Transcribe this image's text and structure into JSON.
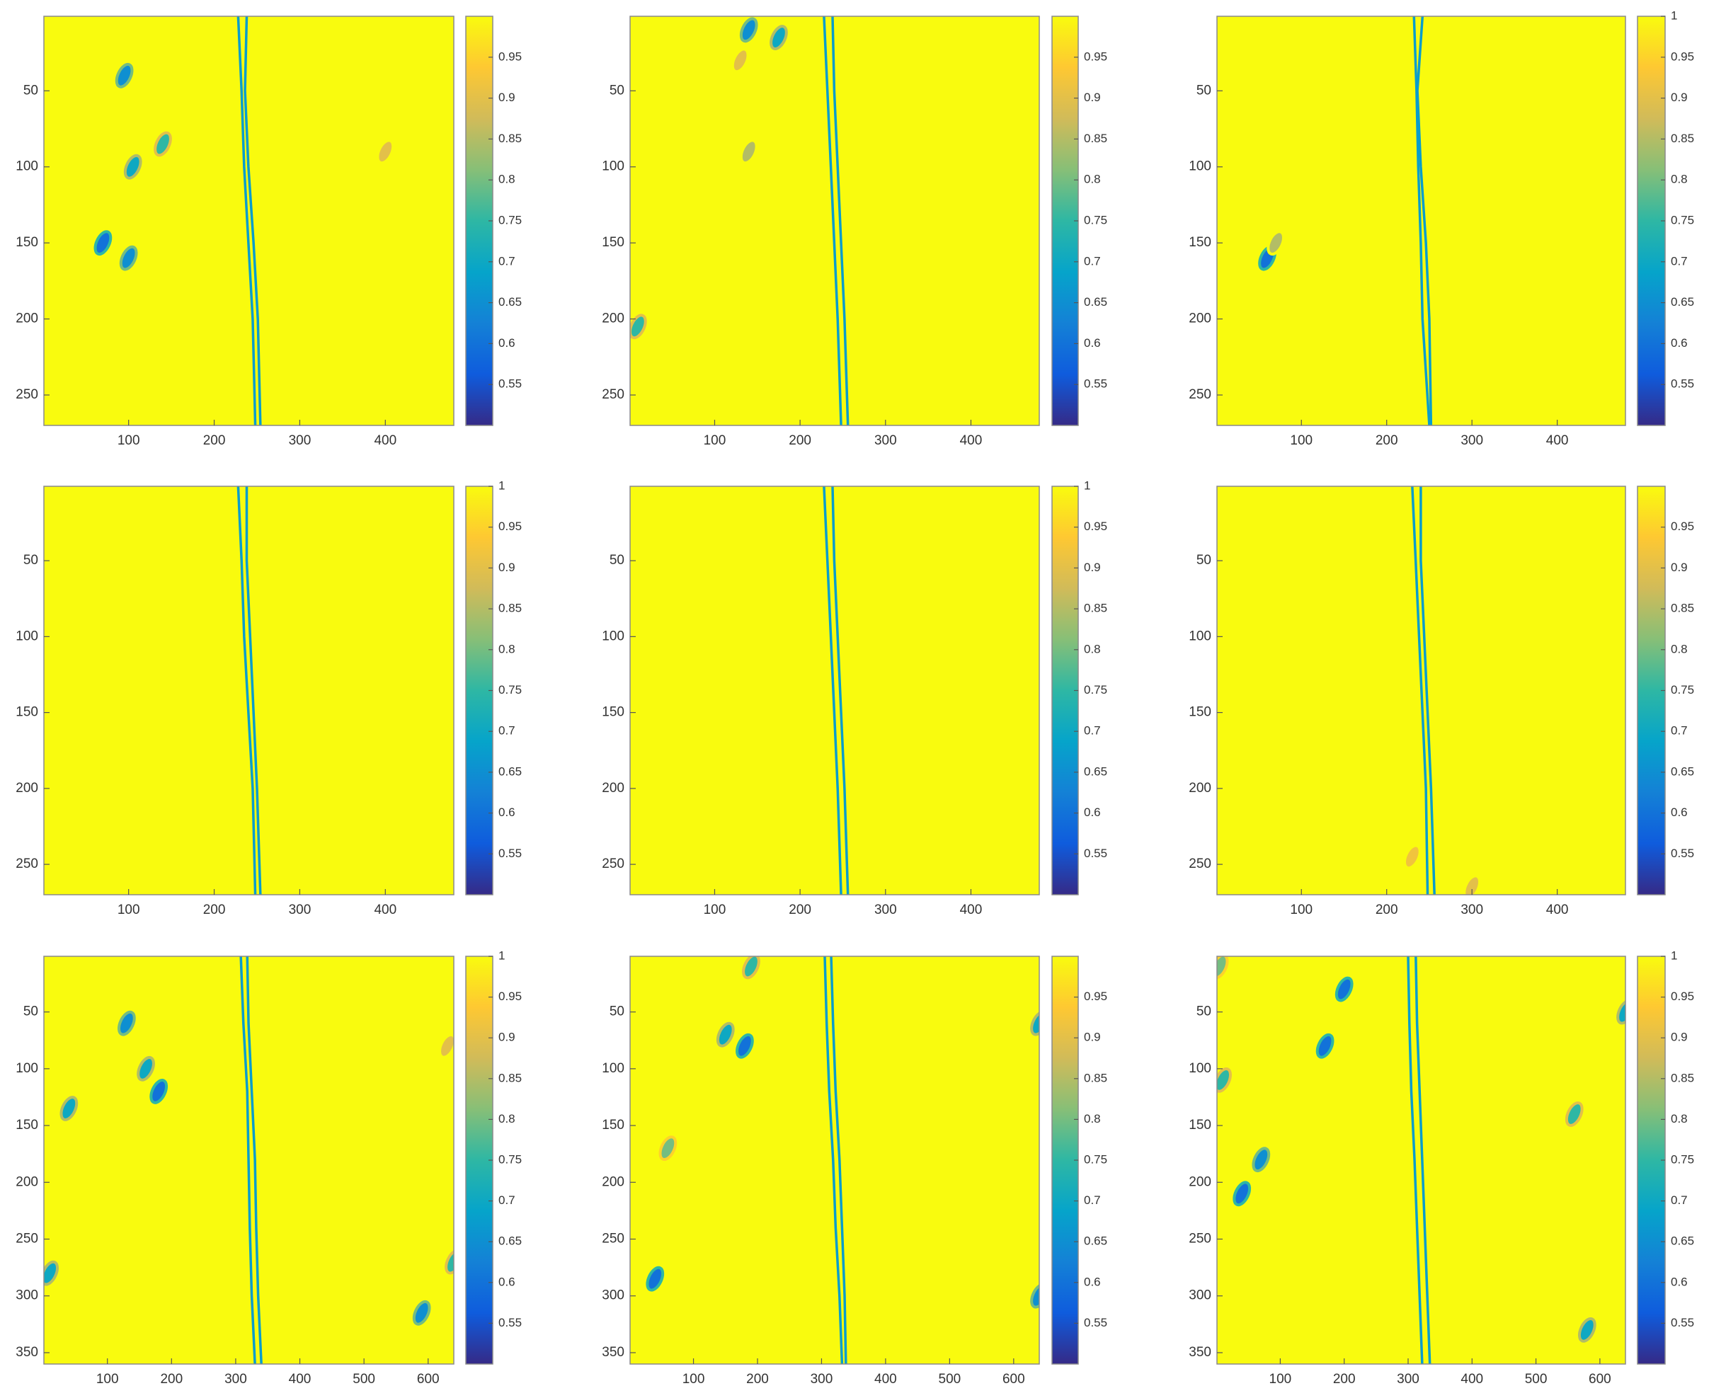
{
  "chart_data": [
    {
      "type": "heatmap",
      "xlim": [
        1,
        480
      ],
      "ylim": [
        1,
        270
      ],
      "y_reversed": true,
      "xticks": [
        100,
        200,
        300,
        400
      ],
      "yticks": [
        50,
        100,
        150,
        200,
        250
      ],
      "clim": [
        0.5,
        1
      ],
      "cticks": [
        0.55,
        0.6,
        0.65,
        0.7,
        0.75,
        0.8,
        0.85,
        0.9,
        0.95
      ],
      "colormap": [
        "#352a87",
        "#0f5cdd",
        "#1481d6",
        "#06a4ca",
        "#2eb7a4",
        "#87bf77",
        "#d1bb59",
        "#fec832",
        "#f9fb0e"
      ],
      "curves": [
        {
          "x": [
            228,
            232,
            235,
            240,
            245,
            248
          ],
          "y": [
            1,
            50,
            100,
            150,
            200,
            270
          ]
        },
        {
          "x": [
            238,
            236,
            240,
            246,
            251,
            254
          ],
          "y": [
            1,
            50,
            100,
            150,
            200,
            270
          ]
        }
      ],
      "spots": {
        "x": [
          95,
          105,
          70,
          100,
          140,
          400
        ],
        "y": [
          40,
          100,
          150,
          160,
          85,
          90
        ],
        "values": [
          0.65,
          0.7,
          0.6,
          0.65,
          0.75,
          0.9
        ]
      }
    },
    {
      "type": "heatmap",
      "xlim": [
        1,
        480
      ],
      "ylim": [
        1,
        270
      ],
      "y_reversed": true,
      "xticks": [
        100,
        200,
        300,
        400
      ],
      "yticks": [
        50,
        100,
        150,
        200,
        250
      ],
      "clim": [
        0.5,
        1
      ],
      "cticks": [
        0.55,
        0.6,
        0.65,
        0.7,
        0.75,
        0.8,
        0.85,
        0.9,
        0.95
      ],
      "colormap": [
        "#352a87",
        "#0f5cdd",
        "#1481d6",
        "#06a4ca",
        "#2eb7a4",
        "#87bf77",
        "#d1bb59",
        "#fec832",
        "#f9fb0e"
      ],
      "curves": [
        {
          "x": [
            228,
            232,
            236,
            240,
            244,
            248
          ],
          "y": [
            1,
            50,
            100,
            150,
            200,
            270
          ]
        },
        {
          "x": [
            238,
            240,
            244,
            248,
            252,
            256
          ],
          "y": [
            1,
            50,
            100,
            150,
            200,
            270
          ]
        }
      ],
      "spots": {
        "x": [
          140,
          175,
          140,
          10,
          130
        ],
        "y": [
          10,
          15,
          90,
          205,
          30
        ],
        "values": [
          0.65,
          0.7,
          0.85,
          0.75,
          0.9
        ]
      }
    },
    {
      "type": "heatmap",
      "xlim": [
        1,
        480
      ],
      "ylim": [
        1,
        270
      ],
      "y_reversed": true,
      "xticks": [
        100,
        200,
        300,
        400
      ],
      "yticks": [
        50,
        100,
        150,
        200,
        250
      ],
      "clim": [
        0.5,
        1
      ],
      "cticks": [
        0.55,
        0.6,
        0.65,
        0.7,
        0.75,
        0.8,
        0.85,
        0.9,
        0.95,
        1
      ],
      "colormap": [
        "#352a87",
        "#0f5cdd",
        "#1481d6",
        "#06a4ca",
        "#2eb7a4",
        "#87bf77",
        "#d1bb59",
        "#fec832",
        "#f9fb0e"
      ],
      "curves": [
        {
          "x": [
            232,
            235,
            237,
            240,
            242,
            250
          ],
          "y": [
            1,
            50,
            100,
            150,
            200,
            270
          ]
        },
        {
          "x": [
            242,
            236,
            240,
            246,
            250,
            252
          ],
          "y": [
            1,
            50,
            100,
            150,
            200,
            270
          ]
        }
      ],
      "spots": {
        "x": [
          60,
          70
        ],
        "y": [
          160,
          150
        ],
        "values": [
          0.6,
          0.85
        ]
      }
    },
    {
      "type": "heatmap",
      "xlim": [
        1,
        480
      ],
      "ylim": [
        1,
        270
      ],
      "y_reversed": true,
      "xticks": [
        100,
        200,
        300,
        400
      ],
      "yticks": [
        50,
        100,
        150,
        200,
        250
      ],
      "clim": [
        0.5,
        1
      ],
      "cticks": [
        0.55,
        0.6,
        0.65,
        0.7,
        0.75,
        0.8,
        0.85,
        0.9,
        0.95,
        1
      ],
      "colormap": [
        "#352a87",
        "#0f5cdd",
        "#1481d6",
        "#06a4ca",
        "#2eb7a4",
        "#87bf77",
        "#d1bb59",
        "#fec832",
        "#f9fb0e"
      ],
      "curves": [
        {
          "x": [
            228,
            232,
            235,
            240,
            245,
            248
          ],
          "y": [
            1,
            50,
            100,
            150,
            200,
            270
          ]
        },
        {
          "x": [
            238,
            238,
            242,
            246,
            250,
            254
          ],
          "y": [
            1,
            50,
            100,
            150,
            200,
            270
          ]
        }
      ]
    },
    {
      "type": "heatmap",
      "xlim": [
        1,
        480
      ],
      "ylim": [
        1,
        270
      ],
      "y_reversed": true,
      "xticks": [
        100,
        200,
        300,
        400
      ],
      "yticks": [
        50,
        100,
        150,
        200,
        250
      ],
      "clim": [
        0.5,
        1
      ],
      "cticks": [
        0.55,
        0.6,
        0.65,
        0.7,
        0.75,
        0.8,
        0.85,
        0.9,
        0.95,
        1
      ],
      "colormap": [
        "#352a87",
        "#0f5cdd",
        "#1481d6",
        "#06a4ca",
        "#2eb7a4",
        "#87bf77",
        "#d1bb59",
        "#fec832",
        "#f9fb0e"
      ],
      "curves": [
        {
          "x": [
            228,
            232,
            236,
            240,
            244,
            248
          ],
          "y": [
            1,
            50,
            100,
            150,
            200,
            270
          ]
        },
        {
          "x": [
            238,
            240,
            244,
            248,
            252,
            256
          ],
          "y": [
            1,
            50,
            100,
            150,
            200,
            270
          ]
        }
      ]
    },
    {
      "type": "heatmap",
      "xlim": [
        1,
        480
      ],
      "ylim": [
        1,
        270
      ],
      "y_reversed": true,
      "xticks": [
        100,
        200,
        300,
        400
      ],
      "yticks": [
        50,
        100,
        150,
        200,
        250
      ],
      "clim": [
        0.5,
        1
      ],
      "cticks": [
        0.55,
        0.6,
        0.65,
        0.7,
        0.75,
        0.8,
        0.85,
        0.9,
        0.95
      ],
      "colormap": [
        "#352a87",
        "#0f5cdd",
        "#1481d6",
        "#06a4ca",
        "#2eb7a4",
        "#87bf77",
        "#d1bb59",
        "#fec832",
        "#f9fb0e"
      ],
      "curves": [
        {
          "x": [
            230,
            234,
            238,
            242,
            246,
            248
          ],
          "y": [
            1,
            50,
            100,
            150,
            200,
            270
          ]
        },
        {
          "x": [
            240,
            240,
            244,
            248,
            252,
            256
          ],
          "y": [
            1,
            50,
            100,
            150,
            200,
            270
          ]
        }
      ],
      "spots": {
        "x": [
          300,
          230
        ],
        "y": [
          265,
          245
        ],
        "values": [
          0.9,
          0.92
        ]
      }
    },
    {
      "type": "heatmap",
      "xlim": [
        1,
        640
      ],
      "ylim": [
        1,
        360
      ],
      "y_reversed": true,
      "xticks": [
        100,
        200,
        300,
        400,
        500,
        600
      ],
      "yticks": [
        50,
        100,
        150,
        200,
        250,
        300,
        350
      ],
      "clim": [
        0.5,
        1
      ],
      "cticks": [
        0.55,
        0.6,
        0.65,
        0.7,
        0.75,
        0.8,
        0.85,
        0.9,
        0.95,
        1
      ],
      "colormap": [
        "#352a87",
        "#0f5cdd",
        "#1481d6",
        "#06a4ca",
        "#2eb7a4",
        "#87bf77",
        "#d1bb59",
        "#fec832",
        "#f9fb0e"
      ],
      "curves": [
        {
          "x": [
            308,
            312,
            318,
            320,
            322,
            325,
            330
          ],
          "y": [
            1,
            60,
            120,
            180,
            240,
            300,
            360
          ]
        },
        {
          "x": [
            318,
            320,
            325,
            330,
            332,
            335,
            340
          ],
          "y": [
            1,
            60,
            120,
            180,
            240,
            300,
            360
          ]
        }
      ],
      "spots": {
        "x": [
          130,
          160,
          180,
          40,
          10,
          590,
          640,
          630
        ],
        "y": [
          60,
          100,
          120,
          135,
          280,
          315,
          270,
          80
        ],
        "values": [
          0.65,
          0.7,
          0.6,
          0.7,
          0.7,
          0.65,
          0.75,
          0.9
        ]
      }
    },
    {
      "type": "heatmap",
      "xlim": [
        1,
        640
      ],
      "ylim": [
        1,
        360
      ],
      "y_reversed": true,
      "xticks": [
        100,
        200,
        300,
        400,
        500,
        600
      ],
      "yticks": [
        50,
        100,
        150,
        200,
        250,
        300,
        350
      ],
      "clim": [
        0.5,
        1
      ],
      "cticks": [
        0.55,
        0.6,
        0.65,
        0.7,
        0.75,
        0.8,
        0.85,
        0.9,
        0.95
      ],
      "colormap": [
        "#352a87",
        "#0f5cdd",
        "#1481d6",
        "#06a4ca",
        "#2eb7a4",
        "#87bf77",
        "#d1bb59",
        "#fec832",
        "#f9fb0e"
      ],
      "curves": [
        {
          "x": [
            305,
            308,
            312,
            318,
            322,
            328,
            332
          ],
          "y": [
            1,
            60,
            120,
            180,
            240,
            300,
            360
          ]
        },
        {
          "x": [
            315,
            318,
            322,
            328,
            332,
            336,
            338
          ],
          "y": [
            1,
            60,
            120,
            180,
            240,
            300,
            360
          ]
        }
      ],
      "spots": {
        "x": [
          180,
          150,
          40,
          640,
          640,
          190,
          60
        ],
        "y": [
          80,
          70,
          285,
          300,
          60,
          10,
          170
        ],
        "values": [
          0.6,
          0.7,
          0.6,
          0.65,
          0.7,
          0.75,
          0.8
        ]
      }
    },
    {
      "type": "heatmap",
      "xlim": [
        1,
        640
      ],
      "ylim": [
        1,
        360
      ],
      "y_reversed": true,
      "xticks": [
        100,
        200,
        300,
        400,
        500,
        600
      ],
      "yticks": [
        50,
        100,
        150,
        200,
        250,
        300,
        350
      ],
      "clim": [
        0.5,
        1
      ],
      "cticks": [
        0.55,
        0.6,
        0.65,
        0.7,
        0.75,
        0.8,
        0.85,
        0.9,
        0.95,
        1
      ],
      "colormap": [
        "#352a87",
        "#0f5cdd",
        "#1481d6",
        "#06a4ca",
        "#2eb7a4",
        "#87bf77",
        "#d1bb59",
        "#fec832",
        "#f9fb0e"
      ],
      "curves": [
        {
          "x": [
            300,
            302,
            305,
            310,
            314,
            318,
            322
          ],
          "y": [
            1,
            60,
            120,
            180,
            240,
            300,
            360
          ]
        },
        {
          "x": [
            312,
            314,
            318,
            322,
            326,
            330,
            334
          ],
          "y": [
            1,
            60,
            120,
            180,
            240,
            300,
            360
          ]
        }
      ],
      "spots": {
        "x": [
          200,
          170,
          70,
          40,
          580,
          560,
          640,
          5,
          10
        ],
        "y": [
          30,
          80,
          180,
          210,
          330,
          140,
          50,
          10,
          110
        ],
        "values": [
          0.6,
          0.6,
          0.65,
          0.6,
          0.7,
          0.75,
          0.7,
          0.8,
          0.75
        ]
      }
    }
  ]
}
